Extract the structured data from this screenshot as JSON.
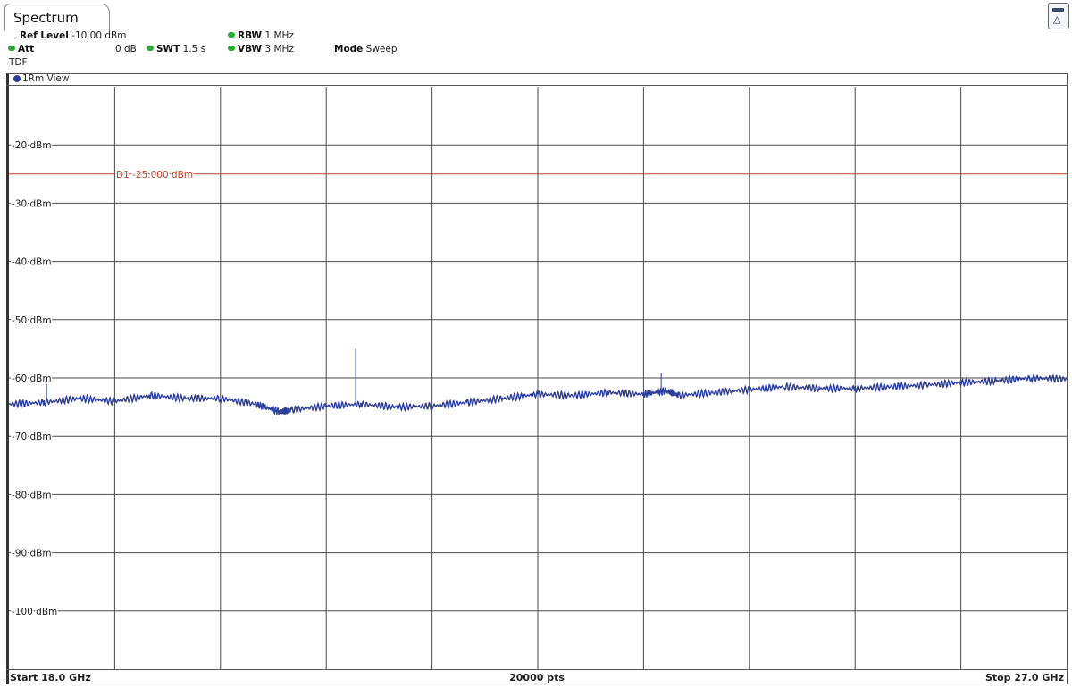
{
  "tab": {
    "title": "Spectrum"
  },
  "header": {
    "ref_level_label": "Ref Level",
    "ref_level_value": "-10.00 dBm",
    "att_label": "Att",
    "att_value": "0 dB",
    "swt_label": "SWT",
    "swt_value": "1.5 s",
    "rbw_label": "RBW",
    "rbw_value": "1 MHz",
    "vbw_label": "VBW",
    "vbw_value": "3 MHz",
    "mode_label": "Mode",
    "mode_value": "Sweep",
    "tdf_label": "TDF"
  },
  "trace_panel": {
    "label": "1Rm View"
  },
  "footer": {
    "start": "Start 18.0 GHz",
    "points": "20000 pts",
    "stop": "Stop 27.0 GHz"
  },
  "colors": {
    "trace": "#2e3e9c",
    "display_line": "#c0422a",
    "grid": "#4a4a4a",
    "status_dot": "#2faa3a"
  },
  "chart_data": {
    "type": "line",
    "xlabel": "",
    "ylabel": "",
    "xlim": [
      18.0,
      27.0
    ],
    "ylim": [
      -110,
      -10
    ],
    "x_unit": "GHz",
    "y_unit": "dBm",
    "grid": true,
    "y_ticks": [
      "-20 dBm",
      "-30 dBm",
      "-40 dBm",
      "-50 dBm",
      "-60 dBm",
      "-70 dBm",
      "-80 dBm",
      "-90 dBm",
      "-100 dBm"
    ],
    "y_tick_values": [
      -20,
      -30,
      -40,
      -50,
      -60,
      -70,
      -80,
      -90,
      -100
    ],
    "display_line": {
      "label": "D1",
      "value": -25.0,
      "value_text": "-25.000 dBm"
    },
    "series": [
      {
        "x": [
          18.0,
          18.3,
          18.6,
          18.9,
          19.2,
          19.5,
          19.8,
          20.1,
          20.3,
          20.4,
          20.7,
          21.0,
          21.3,
          21.6,
          21.9,
          22.2,
          22.5,
          22.8,
          23.1,
          23.4,
          23.6,
          23.7,
          24.0,
          24.3,
          24.6,
          24.9,
          25.2,
          25.5,
          25.8,
          26.1,
          26.4,
          26.7,
          27.0
        ],
        "y": [
          -64.5,
          -64.2,
          -63.5,
          -64.0,
          -63.0,
          -63.5,
          -63.5,
          -64.5,
          -65.8,
          -65.5,
          -64.8,
          -64.5,
          -65.0,
          -64.8,
          -64.2,
          -63.5,
          -62.8,
          -63.0,
          -62.5,
          -62.8,
          -62.2,
          -63.0,
          -62.5,
          -62.0,
          -61.5,
          -61.8,
          -61.8,
          -61.5,
          -61.2,
          -60.8,
          -60.5,
          -60.0,
          -60.2
        ]
      }
    ],
    "spikes": [
      {
        "x": 18.32,
        "y": -61.0
      },
      {
        "x": 20.95,
        "y": -55.0
      },
      {
        "x": 23.55,
        "y": -59.2
      }
    ]
  }
}
